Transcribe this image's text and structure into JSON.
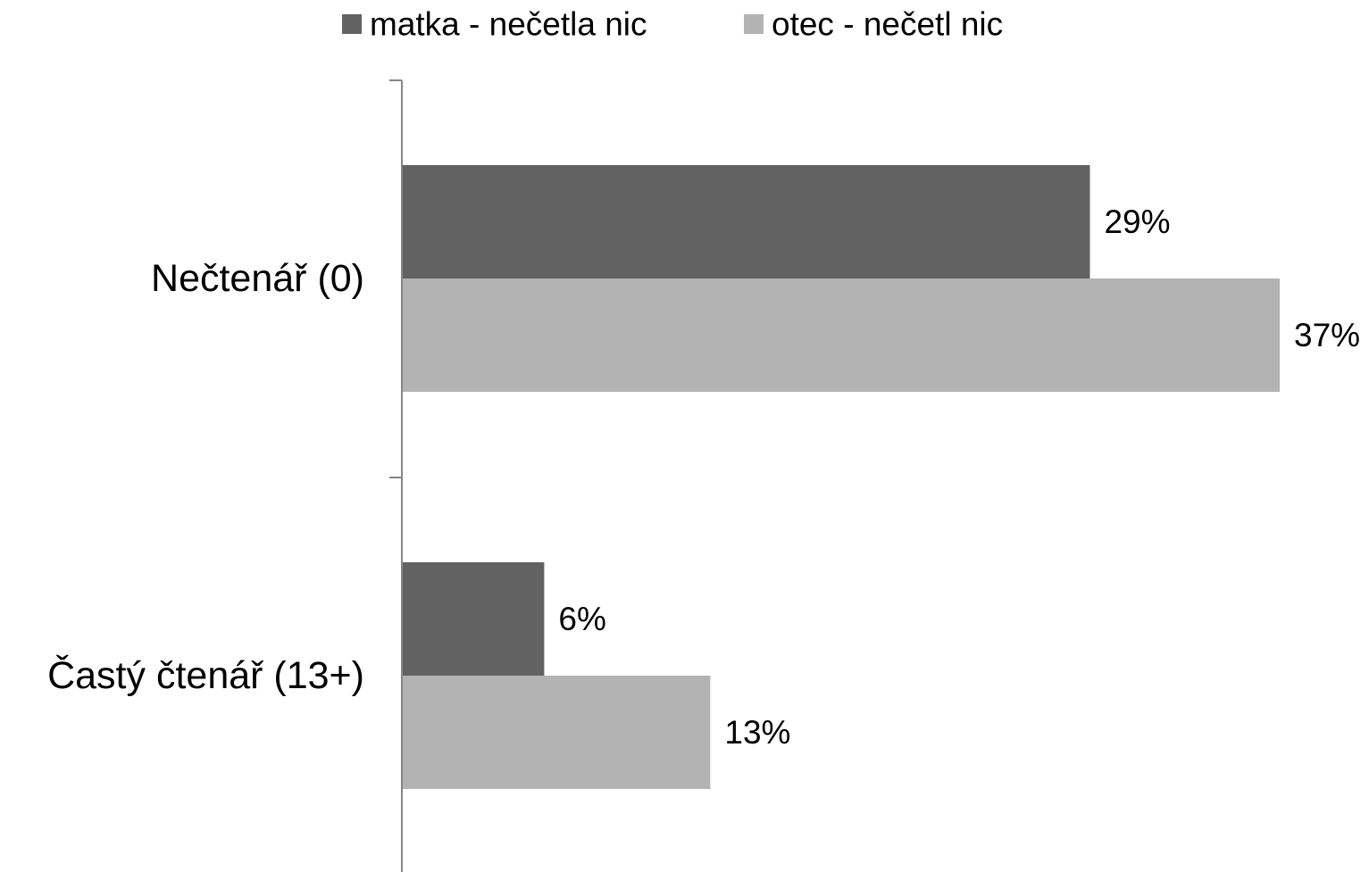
{
  "chart_data": {
    "type": "bar",
    "orientation": "horizontal",
    "categories": [
      "Nečtenář (0)",
      "Častý čtenář (13+)"
    ],
    "series": [
      {
        "name": "matka - nečetla nic",
        "values": [
          29,
          6
        ],
        "labels": [
          "29%",
          "6%"
        ],
        "color": "#626262"
      },
      {
        "name": "otec - nečetl nic",
        "values": [
          37,
          13
        ],
        "labels": [
          "37%",
          "13%"
        ],
        "color": "#b3b3b3"
      }
    ],
    "unit": "%",
    "xlim": [
      0,
      37
    ],
    "grid": false,
    "value_axis_visible": false,
    "legend_position": "top",
    "title": "",
    "xlabel": "",
    "ylabel": ""
  }
}
